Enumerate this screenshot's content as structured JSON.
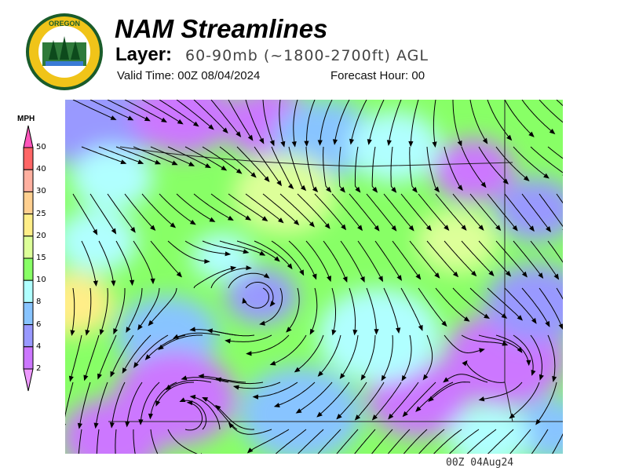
{
  "header": {
    "title": "NAM Streamlines",
    "layer_label": "Layer:",
    "layer_value": "60-90mb (~1800-2700ft) AGL",
    "valid_time": "Valid Time: 00Z 08/04/2024",
    "forecast_hour": "Forecast Hour: 00"
  },
  "logo": {
    "text_top": "OREGON",
    "text_bottom": "DEPARTMENT OF FORESTRY"
  },
  "footer": {
    "timestamp": "00Z 04Aug24"
  },
  "chart_data": {
    "type": "heatmap",
    "title": "NAM Streamlines",
    "legend": {
      "unit": "MPH",
      "placement": "left",
      "levels": [
        2,
        4,
        6,
        8,
        10,
        15,
        20,
        25,
        30,
        40,
        50
      ],
      "colors": [
        "#cc77ff",
        "#9999ff",
        "#88c4ff",
        "#b0ffff",
        "#88ff66",
        "#ddff99",
        "#ffee88",
        "#ffd090",
        "#ffb0a0",
        "#ff6666"
      ],
      "under_color": "#ee99ff",
      "over_color": "#ff55bb"
    },
    "overlay": "streamlines"
  }
}
